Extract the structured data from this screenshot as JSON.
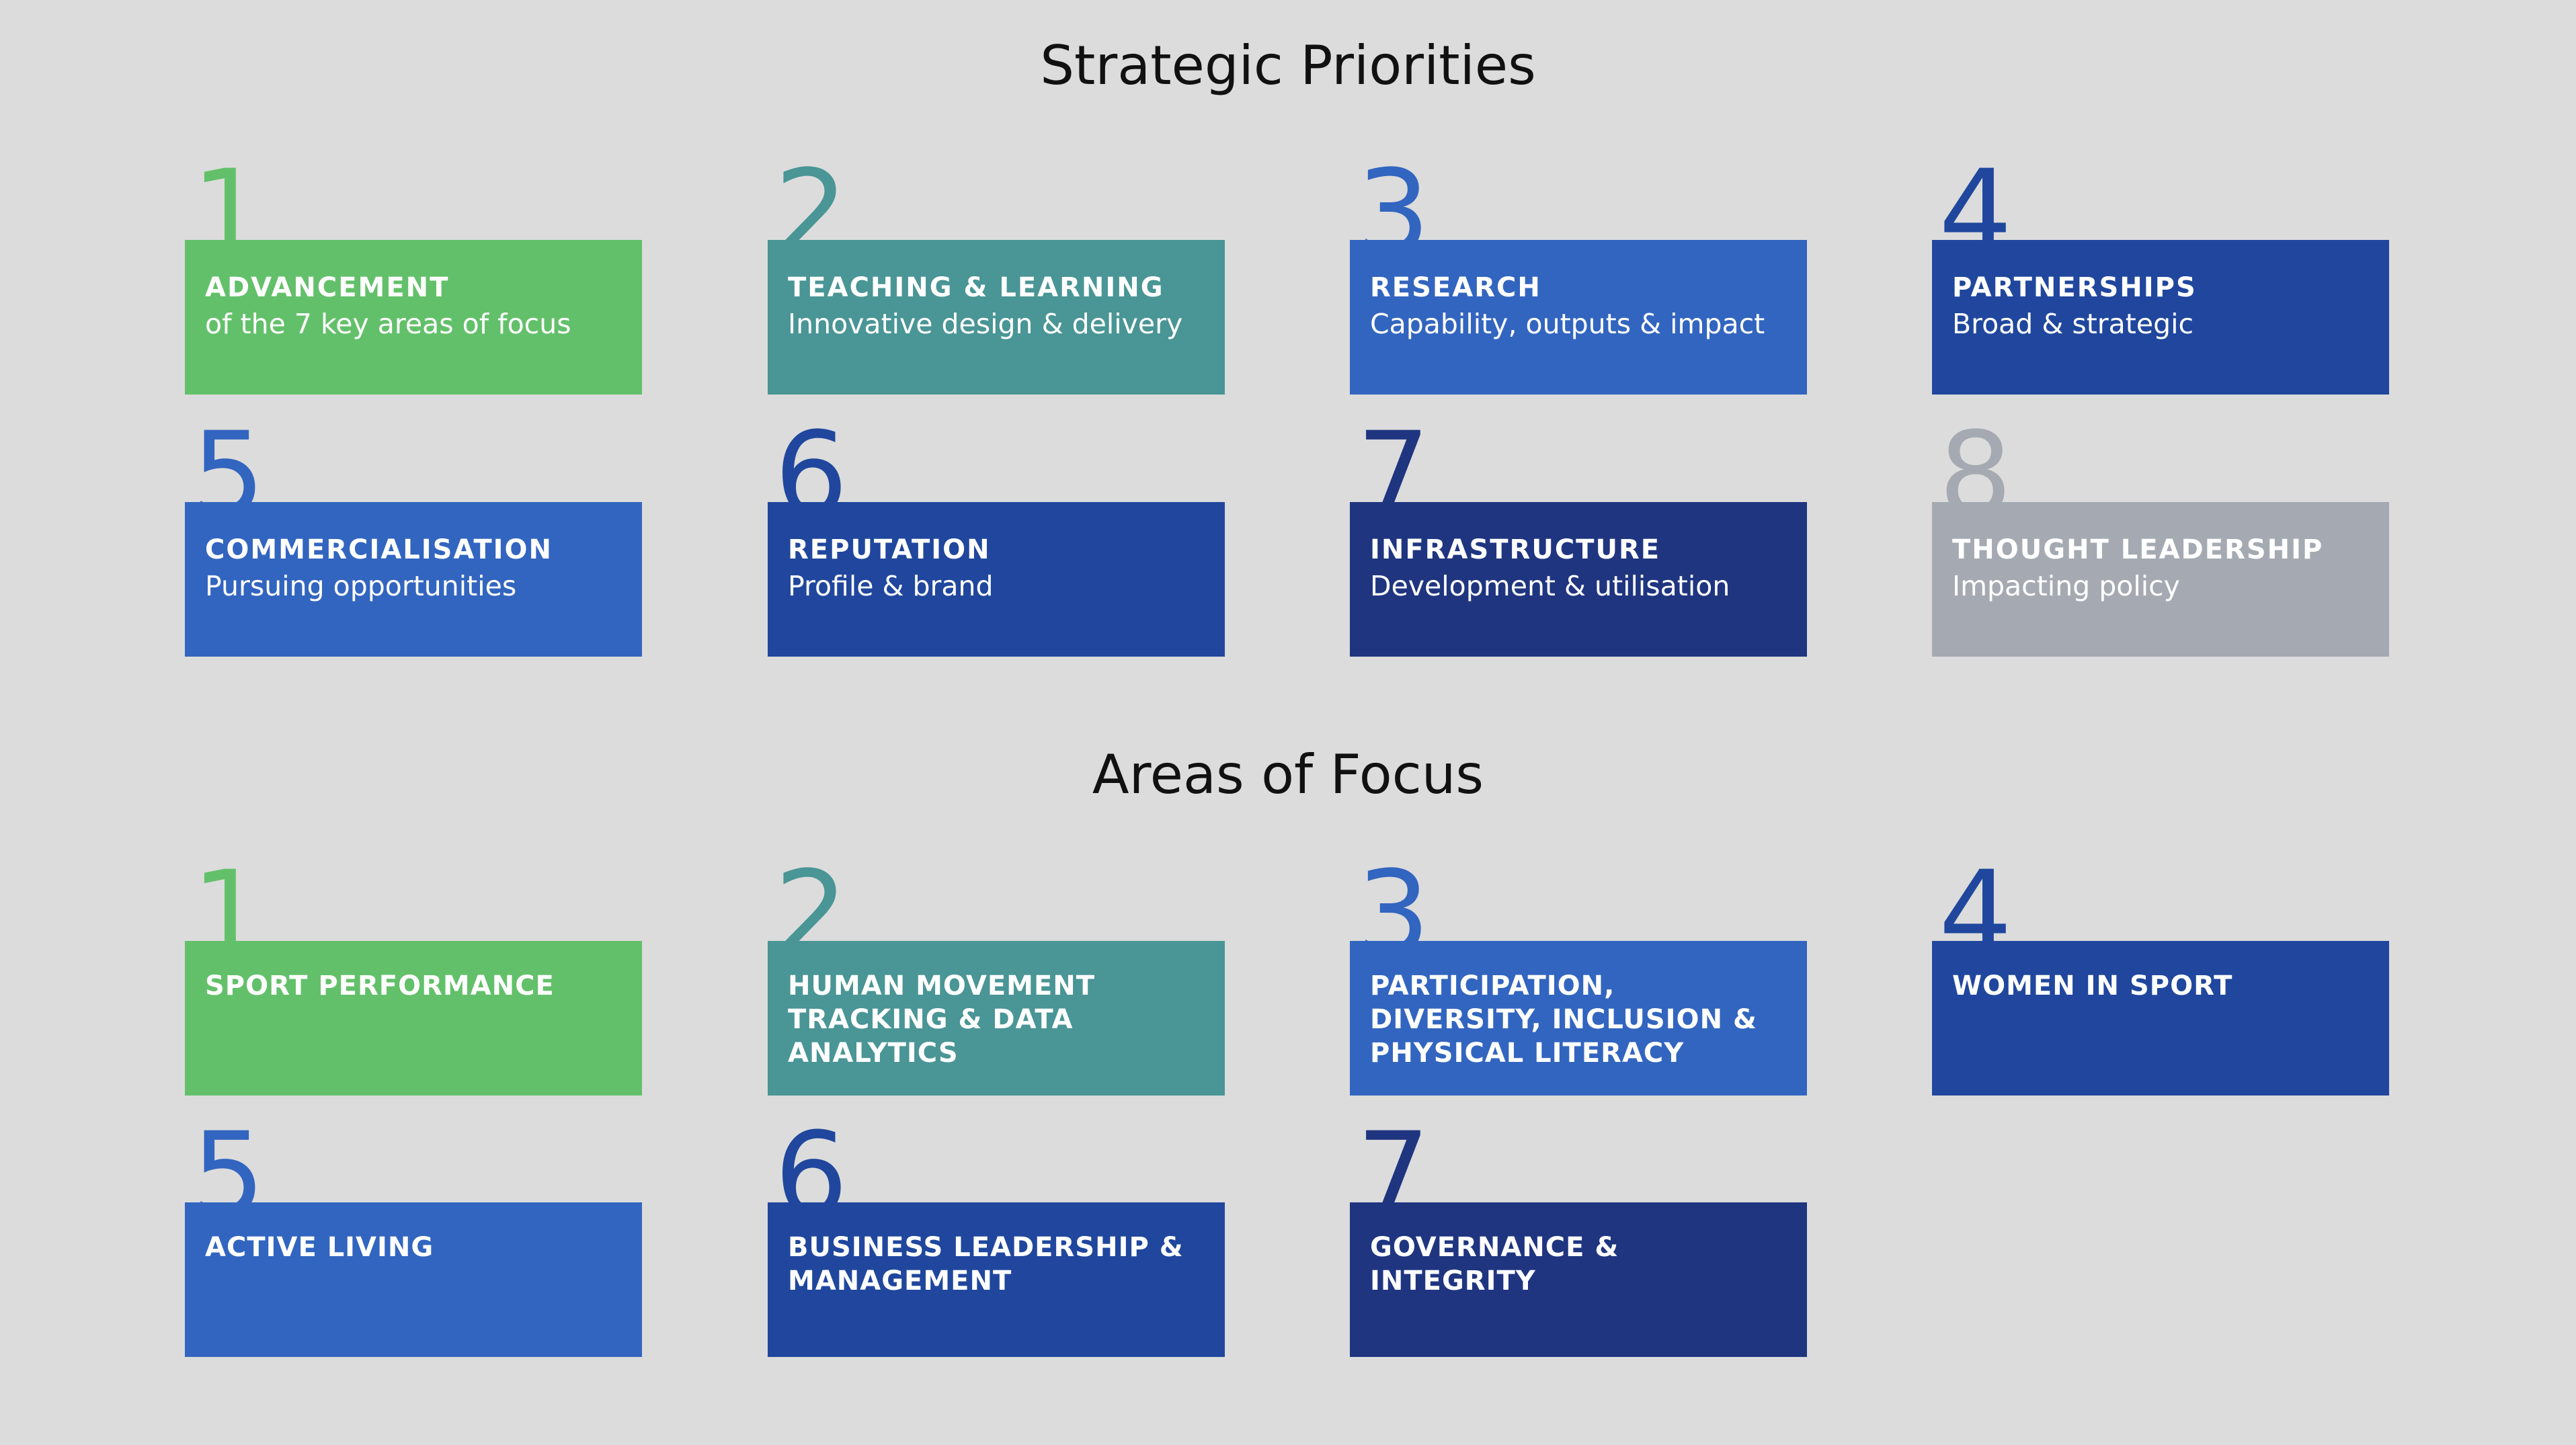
{
  "strategic_priorities": {
    "title": "Strategic Priorities",
    "items": [
      {
        "number": "1",
        "heading": "ADVANCEMENT",
        "subheading": "of the 7 key areas of focus",
        "color": "#63c06a"
      },
      {
        "number": "2",
        "heading": "TEACHING & LEARNING",
        "subheading": "Innovative design & delivery",
        "color": "#4a9595"
      },
      {
        "number": "3",
        "heading": "RESEARCH",
        "subheading": "Capability, outputs & impact",
        "color": "#3265bf"
      },
      {
        "number": "4",
        "heading": "PARTNERSHIPS",
        "subheading": "Broad & strategic",
        "color": "#20479d"
      },
      {
        "number": "5",
        "heading": "COMMERCIALISATION",
        "subheading": "Pursuing opportunities",
        "color": "#3265bf"
      },
      {
        "number": "6",
        "heading": "REPUTATION",
        "subheading": "Profile & brand",
        "color": "#20479d"
      },
      {
        "number": "7",
        "heading": "INFRASTRUCTURE",
        "subheading": "Development & utilisation",
        "color": "#1f3580"
      },
      {
        "number": "8",
        "heading": "THOUGHT LEADERSHIP",
        "subheading": "Impacting policy",
        "color": "#a5aab2"
      }
    ]
  },
  "areas_of_focus": {
    "title": "Areas of Focus",
    "items": [
      {
        "number": "1",
        "heading": "SPORT PERFORMANCE",
        "color": "#63c06a"
      },
      {
        "number": "2",
        "heading": "HUMAN MOVEMENT TRACKING & DATA ANALYTICS",
        "color": "#4a9595"
      },
      {
        "number": "3",
        "heading": "PARTICIPATION, DIVERSITY, INCLUSION & PHYSICAL LITERACY",
        "color": "#3265bf"
      },
      {
        "number": "4",
        "heading": "WOMEN IN SPORT",
        "color": "#20479d"
      },
      {
        "number": "5",
        "heading": "ACTIVE LIVING",
        "color": "#3265bf"
      },
      {
        "number": "6",
        "heading": "BUSINESS LEADERSHIP & MANAGEMENT",
        "color": "#20479d"
      },
      {
        "number": "7",
        "heading": "GOVERNANCE & INTEGRITY",
        "color": "#1f3580"
      }
    ]
  }
}
